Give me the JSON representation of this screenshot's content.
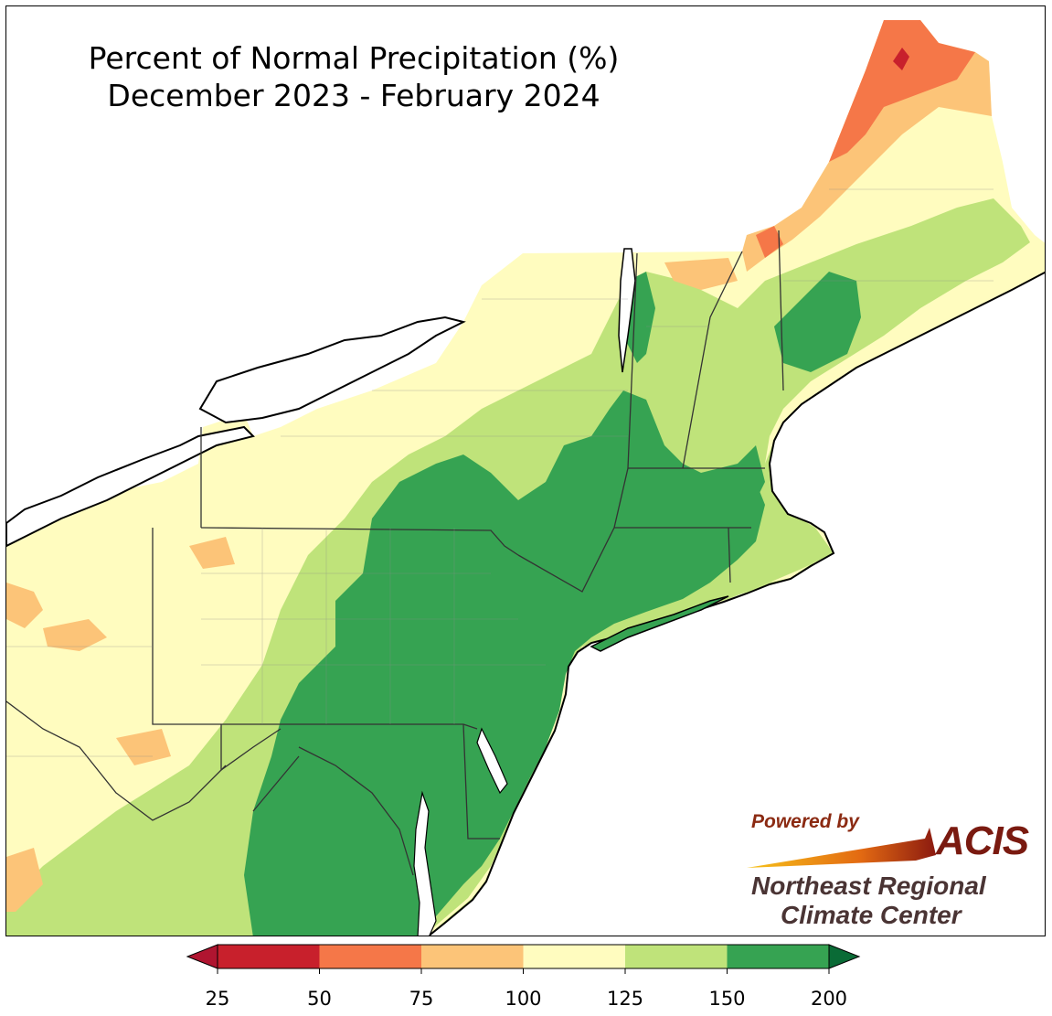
{
  "title": {
    "line1": "Percent of Normal Precipitation (%)",
    "line2": "December 2023 - February 2024"
  },
  "legend": {
    "ticks": [
      "25",
      "50",
      "75",
      "100",
      "125",
      "150",
      "200"
    ],
    "colors": [
      "#c8202c",
      "#f57748",
      "#fcc478",
      "#fffcbf",
      "#bfe37a",
      "#36a352"
    ],
    "under_color": "#b01530",
    "over_color": "#0a6b36",
    "extend": "both"
  },
  "logo": {
    "powered_by": "Powered by",
    "acis": "ACIS",
    "org_line1": "Northeast Regional",
    "org_line2": "Climate Center"
  },
  "map_colors": {
    "water": "#ffffff",
    "outline": "#000000",
    "state_border": "#333333"
  }
}
